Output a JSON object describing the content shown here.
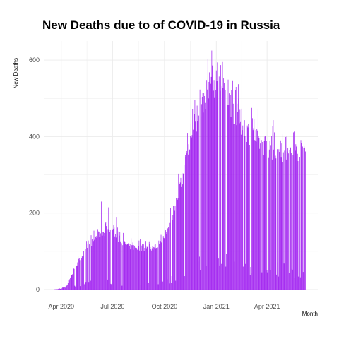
{
  "chart_data": {
    "type": "bar",
    "title": "New Deaths due to of COVID-19 in Russia",
    "xlabel": "Month",
    "ylabel": "New Deaths",
    "ylim": [
      0,
      650
    ],
    "yticks": [
      0,
      200,
      400,
      600
    ],
    "xlim": [
      "2020-03-01",
      "2021-06-30"
    ],
    "xticks": [
      {
        "date": "2020-04-01",
        "label": "Apr 2020"
      },
      {
        "date": "2020-07-01",
        "label": "Jul 2020"
      },
      {
        "date": "2020-10-01",
        "label": "Oct 2020"
      },
      {
        "date": "2021-01-01",
        "label": "Jan 2021"
      },
      {
        "date": "2021-04-01",
        "label": "Apr 2021"
      }
    ],
    "grid": true,
    "bar_color": "#a020f0",
    "x_start": "2020-03-15",
    "x_end": "2021-06-08",
    "anchors": [
      [
        "2020-03-15",
        0
      ],
      [
        "2020-03-25",
        1
      ],
      [
        "2020-04-01",
        3
      ],
      [
        "2020-04-10",
        10
      ],
      [
        "2020-04-20",
        40
      ],
      [
        "2020-05-01",
        75
      ],
      [
        "2020-05-15",
        105
      ],
      [
        "2020-06-01",
        140
      ],
      [
        "2020-06-15",
        155
      ],
      [
        "2020-07-01",
        150
      ],
      [
        "2020-07-15",
        130
      ],
      [
        "2020-08-01",
        115
      ],
      [
        "2020-08-15",
        112
      ],
      [
        "2020-09-01",
        110
      ],
      [
        "2020-09-15",
        115
      ],
      [
        "2020-10-01",
        140
      ],
      [
        "2020-10-15",
        200
      ],
      [
        "2020-11-01",
        290
      ],
      [
        "2020-11-15",
        390
      ],
      [
        "2020-12-01",
        470
      ],
      [
        "2020-12-15",
        530
      ],
      [
        "2020-12-25",
        560
      ],
      [
        "2021-01-05",
        545
      ],
      [
        "2021-01-20",
        520
      ],
      [
        "2021-02-01",
        480
      ],
      [
        "2021-02-15",
        440
      ],
      [
        "2021-03-01",
        420
      ],
      [
        "2021-03-15",
        400
      ],
      [
        "2021-04-01",
        385
      ],
      [
        "2021-04-15",
        370
      ],
      [
        "2021-05-01",
        360
      ],
      [
        "2021-05-15",
        365
      ],
      [
        "2021-06-01",
        375
      ],
      [
        "2021-06-08",
        380
      ]
    ],
    "peaks": [
      [
        "2020-06-11",
        230
      ],
      [
        "2020-06-24",
        215
      ],
      [
        "2020-07-08",
        190
      ],
      [
        "2020-12-24",
        625
      ],
      [
        "2020-12-30",
        600
      ],
      [
        "2021-01-12",
        595
      ],
      [
        "2021-02-05",
        530
      ],
      [
        "2021-03-05",
        475
      ]
    ]
  }
}
